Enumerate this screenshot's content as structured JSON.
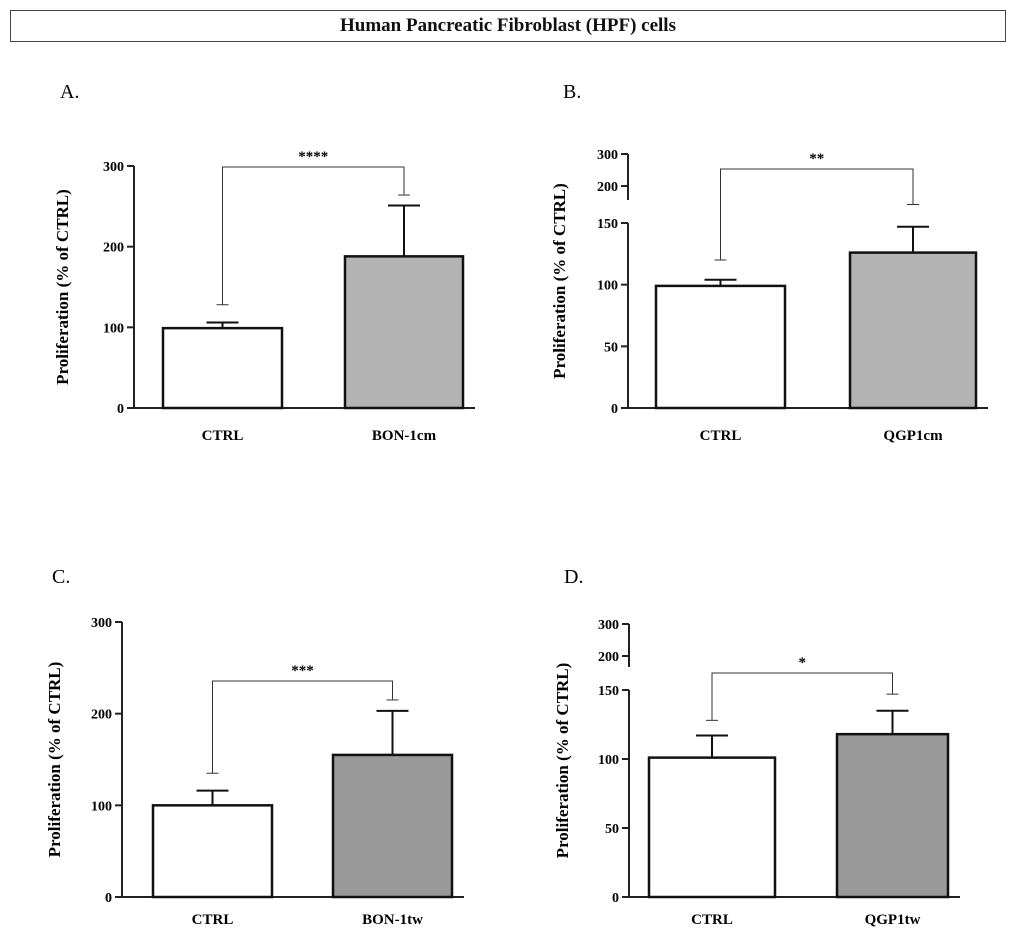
{
  "figure_title": "Human Pancreatic Fibroblast (HPF) cells",
  "chart_data": [
    {
      "panel": "A.",
      "type": "bar",
      "ylabel": "Proliferation (% of CTRL)",
      "categories": [
        "CTRL",
        "BON-1cm"
      ],
      "values": [
        99,
        188
      ],
      "errors": [
        7,
        63
      ],
      "bar_colors": [
        "#ffffff",
        "#b3b3b3"
      ],
      "ylim": [
        0,
        300
      ],
      "yticks": [
        0,
        100,
        200,
        300
      ],
      "axis_break": false,
      "significance": "****",
      "bracket_level": 300,
      "bracket_drops": [
        128,
        264
      ]
    },
    {
      "panel": "B.",
      "type": "bar",
      "ylabel": "Proliferation (% of CTRL)",
      "categories": [
        "CTRL",
        "QGP1cm"
      ],
      "values": [
        99,
        126
      ],
      "errors": [
        5,
        21
      ],
      "bar_colors": [
        "#ffffff",
        "#b3b3b3"
      ],
      "ylim": [
        0,
        300
      ],
      "yticks": [
        0,
        50,
        100,
        150,
        200,
        300
      ],
      "axis_break": true,
      "break_between": [
        150,
        200
      ],
      "significance": "**",
      "bracket_level": 250,
      "bracket_drops": [
        120,
        165
      ]
    },
    {
      "panel": "C.",
      "type": "bar",
      "ylabel": "Proliferation (% of CTRL)",
      "categories": [
        "CTRL",
        "BON-1tw"
      ],
      "values": [
        100,
        155
      ],
      "errors": [
        16,
        48
      ],
      "bar_colors": [
        "#ffffff",
        "#999999"
      ],
      "ylim": [
        0,
        300
      ],
      "yticks": [
        0,
        100,
        200,
        300
      ],
      "axis_break": false,
      "significance": "***",
      "bracket_level": 235,
      "bracket_drops": [
        135,
        215
      ]
    },
    {
      "panel": "D.",
      "type": "bar",
      "ylabel": "Proliferation (% of CTRL)",
      "categories": [
        "CTRL",
        "QGP1tw"
      ],
      "values": [
        101,
        118
      ],
      "errors": [
        16,
        17
      ],
      "bar_colors": [
        "#ffffff",
        "#999999"
      ],
      "ylim": [
        0,
        300
      ],
      "yticks": [
        0,
        50,
        100,
        150,
        200,
        300
      ],
      "axis_break": true,
      "break_between": [
        150,
        200
      ],
      "significance": "*",
      "bracket_level": 250,
      "bracket_drops": [
        128,
        147
      ]
    }
  ]
}
